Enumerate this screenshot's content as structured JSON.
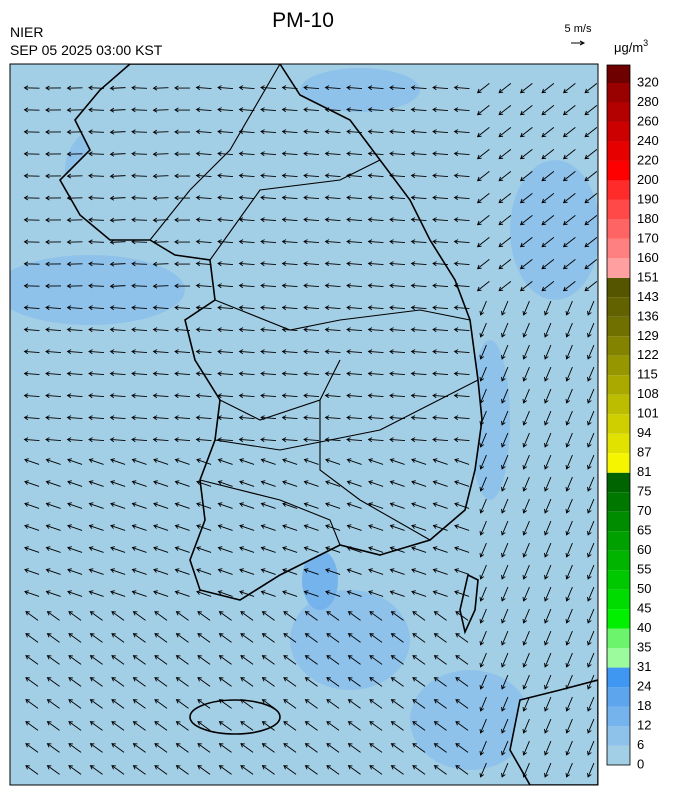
{
  "header": {
    "title": "PM-10",
    "agency": "NIER",
    "datetime": "SEP 05 2025 03:00 KST",
    "wind_scale": "5 m/s"
  },
  "colorbar": {
    "unit": "μg/m",
    "unit_exponent": "3",
    "levels": [
      0,
      6,
      12,
      18,
      24,
      31,
      35,
      40,
      45,
      50,
      55,
      60,
      65,
      70,
      75,
      81,
      87,
      94,
      101,
      108,
      115,
      122,
      129,
      136,
      143,
      151,
      160,
      170,
      180,
      190,
      200,
      220,
      240,
      260,
      280,
      320
    ],
    "colors": [
      "#a3cfe6",
      "#8fc2ea",
      "#74b3ec",
      "#5da6ee",
      "#3f97f2",
      "#9cfb9c",
      "#6cf56c",
      "#00f000",
      "#00dc00",
      "#00c800",
      "#00b400",
      "#00a000",
      "#008c00",
      "#007800",
      "#006400",
      "#f5f500",
      "#e2e200",
      "#cfcf00",
      "#bcbc00",
      "#a9a900",
      "#969600",
      "#838300",
      "#707000",
      "#626200",
      "#555500",
      "#ff9f9f",
      "#ff8080",
      "#ff6464",
      "#ff4848",
      "#ff2a2a",
      "#ff0000",
      "#e60000",
      "#cc0000",
      "#b30000",
      "#990000",
      "#6e0000"
    ]
  }
}
